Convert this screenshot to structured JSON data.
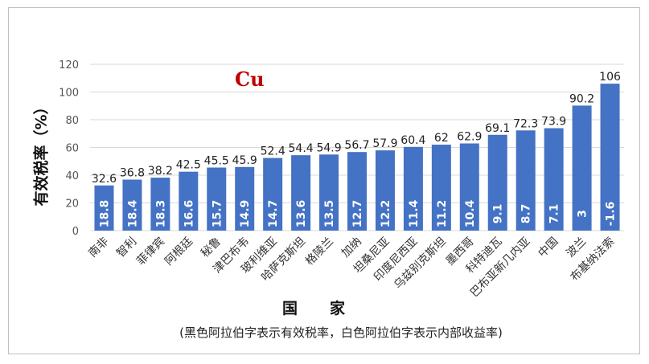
{
  "chart_data": {
    "type": "bar",
    "element_label": "Cu",
    "ylabel": "有效税率（%）",
    "xlabel": "国家",
    "note": "(黑色阿拉伯字表示有效税率，白色阿拉伯字表示内部收益率)",
    "ylim": [
      0,
      120
    ],
    "yticks": [
      0,
      20,
      40,
      60,
      80,
      100,
      120
    ],
    "grid": true,
    "categories": [
      "南非",
      "智利",
      "菲律宾",
      "阿根廷",
      "秘鲁",
      "津巴布韦",
      "玻利维亚",
      "哈萨克斯坦",
      "格陵兰",
      "加纳",
      "坦桑尼亚",
      "印度尼西亚",
      "乌兹别克斯坦",
      "墨西哥",
      "科特迪瓦",
      "巴布亚新几内亚",
      "中国",
      "波兰",
      "布基纳法索"
    ],
    "series": [
      {
        "values": [
          32.6,
          36.8,
          38.2,
          42.5,
          45.5,
          45.9,
          52.4,
          54.4,
          54.9,
          56.7,
          57.9,
          60.4,
          62,
          62.9,
          69.1,
          72.3,
          73.9,
          90.2,
          106
        ]
      },
      {
        "values": [
          18.8,
          18.4,
          18.3,
          16.6,
          15.7,
          14.9,
          14.7,
          13.6,
          13.5,
          12.7,
          12.2,
          11.4,
          11.2,
          10.4,
          9.1,
          8.7,
          7.1,
          3,
          -1.6
        ]
      }
    ],
    "value_labels": [
      "32.6",
      "36.8",
      "38.2",
      "42.5",
      "45.5",
      "45.9",
      "52.4",
      "54.4",
      "54.9",
      "56.7",
      "57.9",
      "60.4",
      "62",
      "62.9",
      "69.1",
      "72.3",
      "73.9",
      "90.2",
      "106"
    ],
    "inner_labels": [
      "18.8",
      "18.4",
      "18.3",
      "16.6",
      "15.7",
      "14.9",
      "14.7",
      "13.6",
      "13.5",
      "12.7",
      "12.2",
      "11.4",
      "11.2",
      "10.4",
      "9.1",
      "8.7",
      "7.1",
      "3",
      "-1.6"
    ],
    "colors": {
      "bar": "#4472C4",
      "element": "#C00000",
      "grid": "#d9d9d9"
    }
  }
}
